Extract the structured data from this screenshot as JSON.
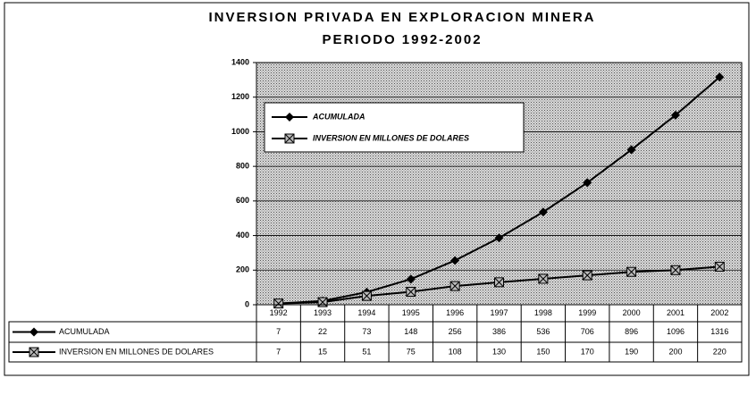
{
  "chart_data": {
    "type": "line",
    "title": "INVERSION PRIVADA EN EXPLORACION MINERA",
    "subtitle": "PERIODO 1992-2002",
    "categories": [
      "1992",
      "1993",
      "1994",
      "1995",
      "1996",
      "1997",
      "1998",
      "1999",
      "2000",
      "2001",
      "2002"
    ],
    "series": [
      {
        "name": "ACUMULADA",
        "color": "#000000",
        "marker": "diamond",
        "values": [
          7,
          22,
          73,
          148,
          256,
          386,
          536,
          706,
          896,
          1096,
          1316
        ]
      },
      {
        "name": "INVERSION EN MILLONES DE DOLARES",
        "color": "#000000",
        "marker": "square",
        "values": [
          7,
          15,
          51,
          75,
          108,
          130,
          150,
          170,
          190,
          200,
          220
        ]
      }
    ],
    "ylim": [
      0,
      1400
    ],
    "yticks": [
      0,
      200,
      400,
      600,
      800,
      1000,
      1200,
      1400
    ],
    "grid": true,
    "legend": "upper left",
    "data_table": true
  }
}
